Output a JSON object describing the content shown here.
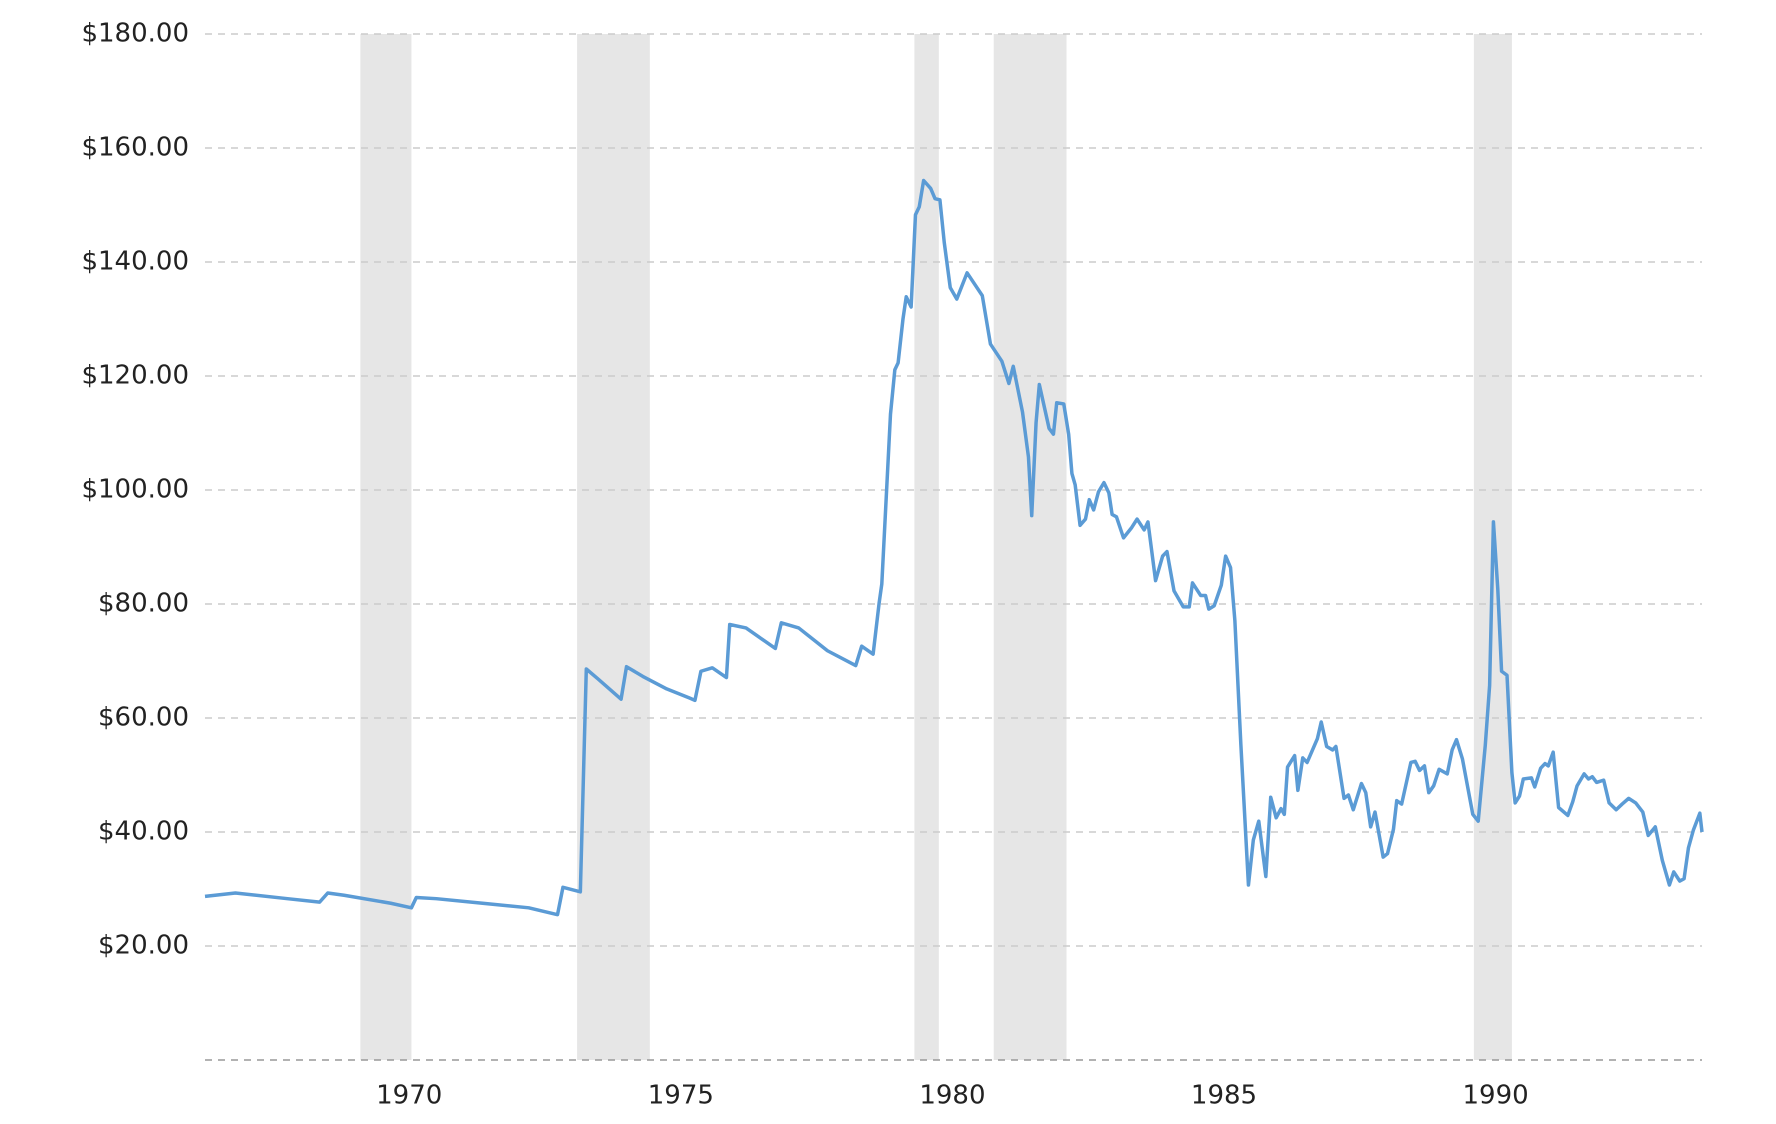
{
  "chart_data": {
    "type": "line",
    "x": [
      1966.24,
      1966.8,
      1967.76,
      1968.35,
      1968.5,
      1968.8,
      1969.66,
      1970.04,
      1970.13,
      1970.5,
      1971.35,
      1972.2,
      1972.73,
      1972.83,
      1973.15,
      1973.26,
      1973.47,
      1973.9,
      1974.0,
      1974.3,
      1974.74,
      1975.16,
      1975.26,
      1975.37,
      1975.58,
      1975.84,
      1975.9,
      1976.2,
      1976.74,
      1976.85,
      1977.17,
      1977.7,
      1978.22,
      1978.33,
      1978.54,
      1978.65,
      1978.7,
      1978.86,
      1978.94,
      1979.0,
      1979.09,
      1979.15,
      1979.24,
      1979.32,
      1979.39,
      1979.47,
      1979.6,
      1979.68,
      1979.77,
      1979.85,
      1979.96,
      1980.08,
      1980.27,
      1980.55,
      1980.7,
      1980.91,
      1981.04,
      1981.12,
      1981.29,
      1981.4,
      1981.46,
      1981.54,
      1981.6,
      1981.78,
      1981.86,
      1981.92,
      1982.05,
      1982.14,
      1982.2,
      1982.26,
      1982.35,
      1982.45,
      1982.52,
      1982.6,
      1982.69,
      1982.79,
      1982.88,
      1982.94,
      1983.02,
      1983.15,
      1983.3,
      1983.4,
      1983.53,
      1983.6,
      1983.74,
      1983.87,
      1983.95,
      1984.08,
      1984.25,
      1984.36,
      1984.42,
      1984.57,
      1984.66,
      1984.72,
      1984.82,
      1984.95,
      1985.03,
      1985.12,
      1985.2,
      1985.31,
      1985.45,
      1985.54,
      1985.64,
      1985.77,
      1985.86,
      1985.96,
      1986.05,
      1986.11,
      1986.17,
      1986.3,
      1986.36,
      1986.45,
      1986.53,
      1986.72,
      1986.79,
      1986.89,
      1987.0,
      1987.06,
      1987.21,
      1987.29,
      1987.38,
      1987.53,
      1987.61,
      1987.7,
      1987.78,
      1987.93,
      1988.01,
      1988.12,
      1988.18,
      1988.27,
      1988.44,
      1988.52,
      1988.6,
      1988.69,
      1988.77,
      1988.86,
      1988.96,
      1989.11,
      1989.2,
      1989.28,
      1989.39,
      1989.58,
      1989.68,
      1989.81,
      1989.89,
      1989.96,
      1990.04,
      1990.11,
      1990.21,
      1990.3,
      1990.36,
      1990.44,
      1990.51,
      1990.66,
      1990.72,
      1990.83,
      1990.91,
      1990.97,
      1991.06,
      1991.16,
      1991.33,
      1991.42,
      1991.5,
      1991.63,
      1991.71,
      1991.78,
      1991.86,
      1991.99,
      1992.09,
      1992.22,
      1992.33,
      1992.45,
      1992.58,
      1992.71,
      1992.81,
      1992.94,
      1993.07,
      1993.2,
      1993.28,
      1993.39,
      1993.47,
      1993.55,
      1993.64,
      1993.76,
      1993.8
    ],
    "values": [
      28.7,
      29.3,
      28.3,
      27.7,
      29.3,
      28.9,
      27.5,
      26.7,
      28.5,
      28.3,
      27.5,
      26.7,
      25.5,
      30.3,
      29.5,
      68.6,
      66.9,
      63.3,
      69.0,
      67.3,
      65.1,
      63.5,
      63.1,
      68.2,
      68.8,
      67.1,
      76.4,
      75.8,
      72.2,
      76.7,
      75.8,
      71.8,
      69.2,
      72.6,
      71.2,
      80.1,
      83.5,
      113.3,
      121.1,
      122.3,
      130.0,
      133.9,
      132.1,
      148.3,
      149.7,
      154.3,
      152.9,
      151.1,
      150.9,
      143.4,
      135.5,
      133.5,
      138.1,
      134.1,
      125.6,
      122.6,
      118.7,
      121.7,
      113.7,
      105.8,
      95.5,
      111.8,
      118.5,
      110.8,
      109.8,
      115.3,
      115.1,
      109.8,
      102.9,
      100.9,
      93.8,
      94.9,
      98.3,
      96.5,
      99.7,
      101.3,
      99.5,
      95.7,
      95.3,
      91.6,
      93.4,
      94.9,
      93.0,
      94.4,
      84.1,
      88.4,
      89.2,
      82.3,
      79.5,
      79.5,
      83.7,
      81.5,
      81.5,
      79.1,
      79.7,
      83.3,
      88.4,
      86.4,
      77.1,
      55.4,
      30.7,
      38.6,
      41.9,
      32.2,
      46.1,
      42.5,
      44.1,
      43.1,
      51.4,
      53.4,
      47.3,
      53.0,
      52.2,
      56.4,
      59.3,
      55.0,
      54.4,
      55.0,
      45.9,
      46.5,
      43.9,
      48.5,
      46.9,
      40.9,
      43.5,
      35.6,
      36.2,
      40.5,
      45.5,
      44.9,
      52.2,
      52.4,
      50.8,
      51.6,
      46.9,
      48.1,
      51.0,
      50.2,
      54.4,
      56.2,
      52.8,
      43.1,
      41.9,
      55.2,
      65.7,
      94.4,
      82.7,
      68.2,
      67.5,
      50.4,
      45.1,
      46.3,
      49.3,
      49.5,
      47.9,
      51.2,
      52.0,
      51.6,
      54.0,
      44.3,
      42.9,
      45.3,
      48.1,
      50.2,
      49.3,
      49.7,
      48.7,
      49.1,
      45.1,
      43.9,
      44.9,
      45.9,
      45.1,
      43.5,
      39.4,
      40.9,
      35.0,
      30.7,
      33.0,
      31.4,
      31.8,
      37.2,
      40.3,
      43.3,
      40.0
    ],
    "color": "#5b9bd5",
    "shaded_ranges": [
      [
        1969.1,
        1970.04
      ],
      [
        1973.09,
        1974.43
      ],
      [
        1979.3,
        1979.75
      ],
      [
        1980.76,
        1982.1
      ],
      [
        1989.6,
        1990.3
      ]
    ],
    "shade_color": "#e6e6e6",
    "xlim": [
      1966.24,
      1993.8
    ],
    "xticks": [
      1970,
      1975,
      1980,
      1985,
      1990
    ],
    "ylim": [
      0,
      180
    ],
    "yticks": [
      {
        "value": 20,
        "label": "$20.00"
      },
      {
        "value": 40,
        "label": "$40.00"
      },
      {
        "value": 60,
        "label": "$60.00"
      },
      {
        "value": 80,
        "label": "$80.00"
      },
      {
        "value": 100,
        "label": "$100.00"
      },
      {
        "value": 120,
        "label": "$120.00"
      },
      {
        "value": 140,
        "label": "$140.00"
      },
      {
        "value": 160,
        "label": "$160.00"
      },
      {
        "value": 180,
        "label": "$180.00"
      }
    ],
    "grid": true
  }
}
